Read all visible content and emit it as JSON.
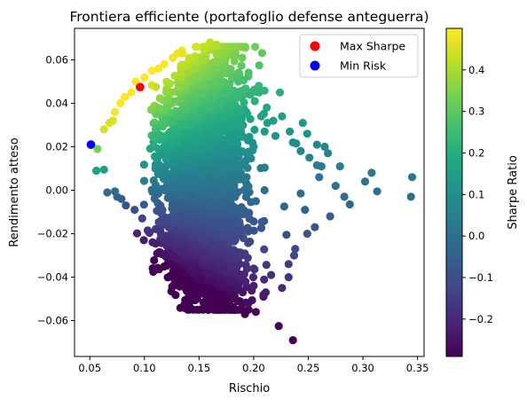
{
  "chart_data": {
    "type": "scatter",
    "title": "Frontiera efficiente (portafoglio defense anteguerra)",
    "xlabel": "Rischio",
    "ylabel": "Rendimento atteso",
    "xlim": [
      0.036,
      0.356
    ],
    "ylim": [
      -0.0765,
      0.0745
    ],
    "xticks": [
      0.05,
      0.1,
      0.15,
      0.2,
      0.25,
      0.3,
      0.35
    ],
    "xtick_labels": [
      "0.05",
      "0.10",
      "0.15",
      "0.20",
      "0.25",
      "0.30",
      "0.35"
    ],
    "yticks": [
      -0.06,
      -0.04,
      -0.02,
      0.0,
      0.02,
      0.04,
      0.06
    ],
    "ytick_labels": [
      "−0.06",
      "−0.04",
      "−0.02",
      "0.00",
      "0.02",
      "0.04",
      "0.06"
    ],
    "grid": false,
    "legend": {
      "placement": "top-right",
      "entries": [
        {
          "name": "Max Sharpe",
          "color": "#ff0000"
        },
        {
          "name": "Min Risk",
          "color": "#0000ff"
        }
      ]
    },
    "colorbar": {
      "label": "Sharpe Ratio",
      "colormap": "viridis",
      "range": [
        -0.29,
        0.5
      ],
      "ticks": [
        -0.2,
        -0.1,
        0.0,
        0.1,
        0.2,
        0.3,
        0.4
      ],
      "tick_labels": [
        "−0.2",
        "−0.1",
        "0.0",
        "0.1",
        "0.2",
        "0.3",
        "0.4"
      ]
    },
    "series": [
      {
        "name": "Max Sharpe",
        "color": "#ff0000",
        "points": [
          [
            0.096,
            0.0475
          ]
        ]
      },
      {
        "name": "Min Risk",
        "color": "#0000ff",
        "points": [
          [
            0.051,
            0.021
          ]
        ]
      },
      {
        "color_by": "sharpe",
        "points": [
          [
            0.345,
            0.006
          ],
          [
            0.344,
            -0.003
          ],
          [
            0.313,
            -0.0005
          ],
          [
            0.308,
            0.008
          ],
          [
            0.302,
            0.004
          ],
          [
            0.288,
            -0.0065
          ],
          [
            0.279,
            0.011
          ],
          [
            0.268,
            0.017
          ],
          [
            0.262,
            0.011
          ],
          [
            0.26,
            0.006
          ],
          [
            0.258,
            0.0115
          ],
          [
            0.258,
            0.021
          ],
          [
            0.256,
            -0.017
          ],
          [
            0.249,
            0.026
          ],
          [
            0.247,
            -0.009
          ],
          [
            0.245,
            0.031
          ],
          [
            0.243,
            -0.0015
          ],
          [
            0.239,
            0.0215
          ],
          [
            0.237,
            -0.03
          ],
          [
            0.232,
            -0.034
          ],
          [
            0.23,
            -0.0205
          ],
          [
            0.226,
            0.034
          ],
          [
            0.228,
            -0.0075
          ],
          [
            0.224,
            0.045
          ],
          [
            0.236,
            -0.069
          ],
          [
            0.223,
            -0.0625
          ],
          [
            0.202,
            -0.056
          ],
          [
            0.209,
            -0.049
          ],
          [
            0.19,
            -0.047
          ],
          [
            0.185,
            -0.045
          ],
          [
            0.18,
            -0.049
          ],
          [
            0.2,
            -0.044
          ],
          [
            0.216,
            -0.039
          ],
          [
            0.211,
            -0.047
          ],
          [
            0.165,
            -0.043
          ],
          [
            0.15,
            -0.041
          ],
          [
            0.136,
            -0.038
          ],
          [
            0.123,
            -0.029
          ],
          [
            0.12,
            -0.03
          ],
          [
            0.115,
            -0.02
          ],
          [
            0.103,
            -0.0185
          ],
          [
            0.098,
            -0.013
          ],
          [
            0.091,
            -0.009
          ],
          [
            0.083,
            -0.007
          ],
          [
            0.079,
            -0.004
          ],
          [
            0.075,
            -0.003
          ],
          [
            0.073,
            -0.0005
          ],
          [
            0.066,
            -0.001
          ],
          [
            0.063,
            0.0095
          ],
          [
            0.056,
            0.009
          ],
          [
            0.057,
            0.019
          ],
          [
            0.063,
            0.028
          ],
          [
            0.068,
            0.031
          ],
          [
            0.071,
            0.032
          ],
          [
            0.073,
            0.036
          ],
          [
            0.078,
            0.04
          ],
          [
            0.082,
            0.043
          ],
          [
            0.088,
            0.045
          ],
          [
            0.092,
            0.05
          ],
          [
            0.1,
            0.052
          ],
          [
            0.107,
            0.055
          ],
          [
            0.113,
            0.056
          ],
          [
            0.118,
            0.058
          ],
          [
            0.126,
            0.061
          ],
          [
            0.135,
            0.063
          ],
          [
            0.141,
            0.061
          ],
          [
            0.147,
            0.066
          ],
          [
            0.155,
            0.065
          ],
          [
            0.16,
            0.068
          ],
          [
            0.166,
            0.067
          ],
          [
            0.171,
            0.063
          ],
          [
            0.169,
            0.059
          ],
          [
            0.173,
            0.056
          ],
          [
            0.178,
            0.049
          ],
          [
            0.186,
            0.05
          ],
          [
            0.19,
            0.046
          ],
          [
            0.197,
            0.044
          ],
          [
            0.201,
            0.041
          ],
          [
            0.205,
            0.045
          ],
          [
            0.207,
            0.034
          ],
          [
            0.212,
            0.038
          ],
          [
            0.21,
            0.027
          ],
          [
            0.218,
            0.032
          ],
          [
            0.22,
            0.025
          ],
          [
            0.233,
            0.027
          ],
          [
            0.236,
            0.022
          ],
          [
            0.243,
            0.018
          ],
          [
            0.251,
            0.015
          ],
          [
            0.265,
            0.02
          ],
          [
            0.275,
            0.002
          ],
          [
            0.283,
            -0.003
          ],
          [
            0.27,
            -0.012
          ],
          [
            0.249,
            -0.02
          ],
          [
            0.238,
            -0.027
          ],
          [
            0.232,
            -0.04
          ],
          [
            0.226,
            -0.045
          ],
          [
            0.209,
            -0.048
          ],
          [
            0.195,
            -0.052
          ],
          [
            0.192,
            -0.057
          ],
          [
            0.2,
            -0.036
          ],
          [
            0.125,
            0.025
          ],
          [
            0.14,
            0.02
          ],
          [
            0.16,
            0.025
          ],
          [
            0.18,
            0.03
          ],
          [
            0.2,
            0.02
          ],
          [
            0.15,
            0.0
          ],
          [
            0.17,
            -0.01
          ],
          [
            0.19,
            0.005
          ],
          [
            0.13,
            0.035
          ],
          [
            0.155,
            0.045
          ],
          [
            0.11,
            0.01
          ],
          [
            0.145,
            -0.02
          ],
          [
            0.175,
            -0.03
          ],
          [
            0.21,
            0.0
          ],
          [
            0.12,
            0.045
          ]
        ]
      }
    ]
  }
}
